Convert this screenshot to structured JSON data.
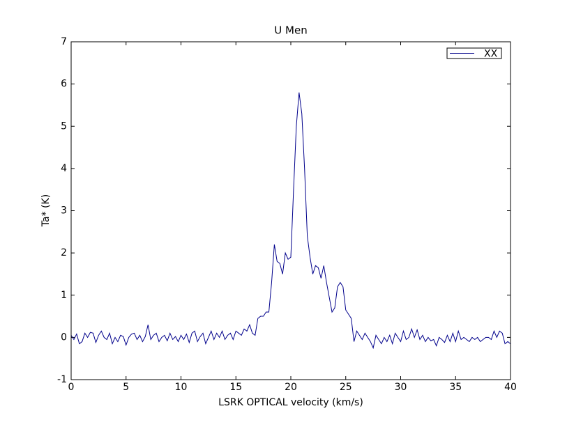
{
  "chart_data": {
    "type": "line",
    "title": "U Men",
    "xlabel": "LSRK OPTICAL velocity (km/s)",
    "ylabel": "Ta* (K)",
    "xlim": [
      0,
      40
    ],
    "xticks": [
      0,
      5,
      10,
      15,
      20,
      25,
      30,
      35,
      40
    ],
    "ylim": [
      -1,
      7
    ],
    "yticks": [
      -1,
      0,
      1,
      2,
      3,
      4,
      5,
      6,
      7
    ],
    "grid": false,
    "legend": "upper right",
    "x": [
      0,
      0.25,
      0.5,
      0.75,
      1,
      1.25,
      1.5,
      1.75,
      2,
      2.25,
      2.5,
      2.75,
      3,
      3.25,
      3.5,
      3.75,
      4,
      4.25,
      4.5,
      4.75,
      5,
      5.25,
      5.5,
      5.75,
      6,
      6.25,
      6.5,
      6.75,
      7,
      7.25,
      7.5,
      7.75,
      8,
      8.25,
      8.5,
      8.75,
      9,
      9.25,
      9.5,
      9.75,
      10,
      10.25,
      10.5,
      10.75,
      11,
      11.25,
      11.5,
      11.75,
      12,
      12.25,
      12.5,
      12.75,
      13,
      13.25,
      13.5,
      13.75,
      14,
      14.25,
      14.5,
      14.75,
      15,
      15.25,
      15.5,
      15.75,
      16,
      16.25,
      16.5,
      16.75,
      17,
      17.25,
      17.5,
      17.75,
      18,
      18.25,
      18.5,
      18.75,
      19,
      19.25,
      19.5,
      19.75,
      20,
      20.25,
      20.5,
      20.75,
      21,
      21.25,
      21.5,
      21.75,
      22,
      22.25,
      22.5,
      22.75,
      23,
      23.25,
      23.5,
      23.75,
      24,
      24.25,
      24.5,
      24.75,
      25,
      25.25,
      25.5,
      25.75,
      26,
      26.25,
      26.5,
      26.75,
      27,
      27.25,
      27.5,
      27.75,
      28,
      28.25,
      28.5,
      28.75,
      29,
      29.25,
      29.5,
      29.75,
      30,
      30.25,
      30.5,
      30.75,
      31,
      31.25,
      31.5,
      31.75,
      32,
      32.25,
      32.5,
      32.75,
      33,
      33.25,
      33.5,
      33.75,
      34,
      34.25,
      34.5,
      34.75,
      35,
      35.25,
      35.5,
      35.75,
      36,
      36.25,
      36.5,
      36.75,
      37,
      37.25,
      37.5,
      37.75,
      38,
      38.25,
      38.5,
      38.75,
      39,
      39.25,
      39.5,
      39.75,
      40
    ],
    "series": [
      {
        "name": "XX",
        "color": "#00008b",
        "values": [
          0.05,
          -0.05,
          0.08,
          -0.15,
          -0.1,
          0.1,
          0.0,
          0.12,
          0.1,
          -0.12,
          0.05,
          0.15,
          0.0,
          -0.05,
          0.1,
          -0.15,
          0.0,
          -0.1,
          0.05,
          0.02,
          -0.18,
          0.0,
          0.08,
          0.1,
          -0.05,
          0.05,
          -0.1,
          0.02,
          0.3,
          -0.05,
          0.05,
          0.1,
          -0.1,
          0.0,
          0.05,
          -0.08,
          0.1,
          -0.05,
          0.02,
          -0.1,
          0.05,
          -0.05,
          0.08,
          -0.12,
          0.1,
          0.15,
          -0.1,
          0.02,
          0.1,
          -0.15,
          0.0,
          0.15,
          -0.05,
          0.1,
          0.0,
          0.15,
          -0.05,
          0.05,
          0.1,
          -0.05,
          0.15,
          0.1,
          0.05,
          0.2,
          0.15,
          0.3,
          0.1,
          0.05,
          0.45,
          0.5,
          0.5,
          0.6,
          0.6,
          1.3,
          2.2,
          1.8,
          1.75,
          1.5,
          2.0,
          1.85,
          1.9,
          3.5,
          5.0,
          5.8,
          5.3,
          4.0,
          2.4,
          1.9,
          1.5,
          1.7,
          1.65,
          1.4,
          1.7,
          1.3,
          0.95,
          0.6,
          0.7,
          1.2,
          1.3,
          1.2,
          0.65,
          0.55,
          0.45,
          -0.1,
          0.15,
          0.05,
          -0.05,
          0.1,
          0.0,
          -0.1,
          -0.25,
          0.05,
          -0.05,
          -0.15,
          0.0,
          -0.1,
          0.05,
          -0.15,
          0.1,
          0.0,
          -0.1,
          0.15,
          -0.05,
          0.0,
          0.2,
          0.0,
          0.18,
          -0.05,
          0.05,
          -0.1,
          0.0,
          -0.08,
          -0.05,
          -0.2,
          0.0,
          -0.05,
          -0.12,
          0.05,
          -0.1,
          0.1,
          -0.1,
          0.15,
          -0.05,
          0.0,
          -0.05,
          -0.1,
          0.0,
          -0.05,
          0.0,
          -0.1,
          -0.05,
          0.0,
          0.0,
          -0.05,
          0.15,
          0.0,
          0.15,
          0.1,
          -0.15,
          -0.1,
          -0.15
        ]
      }
    ]
  }
}
